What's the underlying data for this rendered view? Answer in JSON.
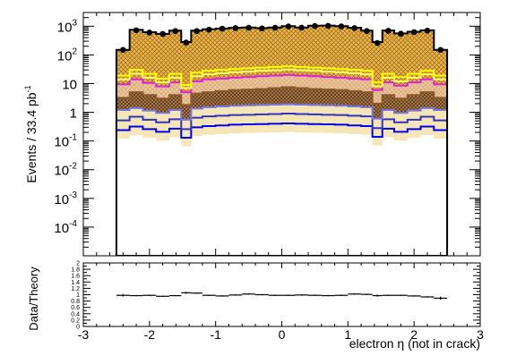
{
  "chart_data": [
    {
      "type": "histogram",
      "panel": "main",
      "xlabel": "",
      "ylabel": "Events / 33.4 pb",
      "ylabel_sup": "-1",
      "y_scale": "log",
      "xlim": [
        -3,
        3
      ],
      "ylim": [
        1e-05,
        3000
      ],
      "x_ticks": [
        -3,
        -2,
        -1,
        0,
        1,
        2,
        3
      ],
      "y_ticks": [
        {
          "value": 1000,
          "base": "10",
          "exp": "3"
        },
        {
          "value": 100,
          "base": "10",
          "exp": "2"
        },
        {
          "value": 10,
          "base": "10",
          "exp": ""
        },
        {
          "value": 1,
          "base": "1",
          "exp": ""
        },
        {
          "value": 0.1,
          "base": "10",
          "exp": "-1"
        },
        {
          "value": 0.01,
          "base": "10",
          "exp": "-2"
        },
        {
          "value": 0.001,
          "base": "10",
          "exp": "-3"
        },
        {
          "value": 0.0001,
          "base": "10",
          "exp": "-4"
        }
      ],
      "bin_edges": [
        -2.5,
        -2.3,
        -2.1,
        -1.9,
        -1.7,
        -1.52,
        -1.37,
        -1.2,
        -1.0,
        -0.8,
        -0.6,
        -0.4,
        -0.2,
        0.0,
        0.2,
        0.4,
        0.6,
        0.8,
        1.0,
        1.2,
        1.37,
        1.52,
        1.7,
        1.9,
        2.1,
        2.3,
        2.5
      ],
      "series": [
        {
          "kind": "step",
          "role": "total-mc",
          "color": "#000000",
          "values": [
            150,
            750,
            620,
            540,
            700,
            280,
            700,
            780,
            830,
            880,
            900,
            860,
            900,
            1000,
            900,
            1040,
            1050,
            1000,
            880,
            700,
            280,
            710,
            560,
            640,
            720,
            150
          ]
        },
        {
          "kind": "step",
          "color": "#ffff00",
          "values": [
            19,
            30,
            22,
            15,
            22,
            9,
            24,
            28,
            30,
            32,
            34,
            36,
            38,
            40,
            38,
            36,
            34,
            32,
            30,
            28,
            11,
            22,
            17,
            22,
            28,
            19
          ]
        },
        {
          "kind": "step",
          "color": "#ffff66",
          "values": [
            14,
            22,
            16,
            11,
            16,
            7,
            18,
            21,
            23,
            25,
            26,
            28,
            29,
            31,
            29,
            28,
            26,
            25,
            23,
            21,
            8,
            16,
            12,
            16,
            21,
            14
          ]
        },
        {
          "kind": "step",
          "color": "#dd22dd",
          "values": [
            9.5,
            14,
            10.5,
            8,
            11,
            5,
            12,
            14,
            15,
            16,
            17,
            18,
            19,
            20,
            19,
            18,
            17,
            16,
            15,
            14,
            6,
            11,
            8.5,
            11,
            14,
            9.5
          ]
        },
        {
          "kind": "step",
          "color": "#8b5a2b",
          "values": [
            3.2,
            5,
            4,
            3,
            4,
            1.8,
            4.5,
            5,
            5.5,
            6,
            6.2,
            6.5,
            7,
            7.5,
            7,
            6.5,
            6.2,
            6,
            5.5,
            5,
            2,
            4,
            3,
            4,
            5,
            3.2
          ]
        },
        {
          "kind": "step",
          "color": "#7777dd",
          "values": [
            1.2,
            1.4,
            1.15,
            0.95,
            1.2,
            0.55,
            1.35,
            1.5,
            1.6,
            1.7,
            1.75,
            1.8,
            1.85,
            1.9,
            1.85,
            1.8,
            1.75,
            1.7,
            1.6,
            1.5,
            0.6,
            1.2,
            0.95,
            1.15,
            1.4,
            1.2
          ]
        },
        {
          "kind": "step",
          "color": "#3333bb",
          "values": [
            0.52,
            0.7,
            0.55,
            0.45,
            0.57,
            0.26,
            0.65,
            0.72,
            0.76,
            0.8,
            0.82,
            0.85,
            0.87,
            0.9,
            0.87,
            0.85,
            0.82,
            0.8,
            0.76,
            0.72,
            0.28,
            0.57,
            0.45,
            0.55,
            0.7,
            0.52
          ]
        },
        {
          "kind": "step",
          "color": "#0000ee",
          "values": [
            0.24,
            0.32,
            0.26,
            0.21,
            0.27,
            0.13,
            0.3,
            0.33,
            0.35,
            0.37,
            0.38,
            0.39,
            0.4,
            0.41,
            0.4,
            0.39,
            0.38,
            0.37,
            0.35,
            0.33,
            0.14,
            0.27,
            0.21,
            0.26,
            0.32,
            0.24
          ]
        }
      ],
      "data_points": {
        "x": [
          -2.4,
          -2.2,
          -2.0,
          -1.8,
          -1.61,
          -1.445,
          -1.285,
          -1.1,
          -0.9,
          -0.7,
          -0.5,
          -0.3,
          -0.1,
          0.1,
          0.3,
          0.5,
          0.7,
          0.9,
          1.1,
          1.285,
          1.445,
          1.61,
          1.8,
          2.0,
          2.2,
          2.4
        ],
        "y": [
          150,
          720,
          600,
          540,
          680,
          270,
          680,
          760,
          820,
          860,
          880,
          840,
          880,
          980,
          890,
          1020,
          1030,
          980,
          860,
          680,
          260,
          690,
          550,
          620,
          700,
          150
        ]
      }
    },
    {
      "type": "scatter",
      "panel": "ratio",
      "xlabel": "electron η (not in crack)",
      "ylabel": "Data/Theory",
      "xlim": [
        -3,
        3
      ],
      "ylim": [
        0,
        2
      ],
      "x_ticks": [
        -3,
        -2,
        -1,
        0,
        1,
        2,
        3
      ],
      "y_ticks": [
        0,
        0.2,
        0.4,
        0.6,
        0.8,
        1,
        1.2,
        1.4,
        1.6,
        1.8,
        2
      ],
      "x": [
        -2.4,
        -2.2,
        -2.0,
        -1.8,
        -1.61,
        -1.445,
        -1.285,
        -1.1,
        -0.9,
        -0.7,
        -0.5,
        -0.3,
        -0.1,
        0.1,
        0.3,
        0.5,
        0.7,
        0.9,
        1.1,
        1.285,
        1.445,
        1.61,
        1.8,
        2.0,
        2.2,
        2.4
      ],
      "y": [
        0.98,
        0.97,
        0.98,
        0.95,
        0.97,
        1.06,
        1.05,
        0.98,
        0.96,
        0.99,
        1.02,
        1.0,
        0.98,
        0.98,
        0.99,
        0.98,
        0.97,
        0.98,
        1.02,
        1.01,
        0.97,
        0.98,
        0.98,
        0.96,
        0.93,
        0.89
      ],
      "xerr": [
        0.1,
        0.1,
        0.1,
        0.1,
        0.09,
        0.075,
        0.085,
        0.1,
        0.1,
        0.1,
        0.1,
        0.1,
        0.1,
        0.1,
        0.1,
        0.1,
        0.1,
        0.1,
        0.1,
        0.085,
        0.075,
        0.09,
        0.1,
        0.1,
        0.1,
        0.1
      ],
      "yerr": [
        0.04,
        0.02,
        0.02,
        0.02,
        0.02,
        0.03,
        0.02,
        0.02,
        0.02,
        0.02,
        0.02,
        0.02,
        0.02,
        0.02,
        0.02,
        0.02,
        0.02,
        0.02,
        0.02,
        0.02,
        0.03,
        0.02,
        0.02,
        0.02,
        0.02,
        0.05
      ]
    }
  ]
}
